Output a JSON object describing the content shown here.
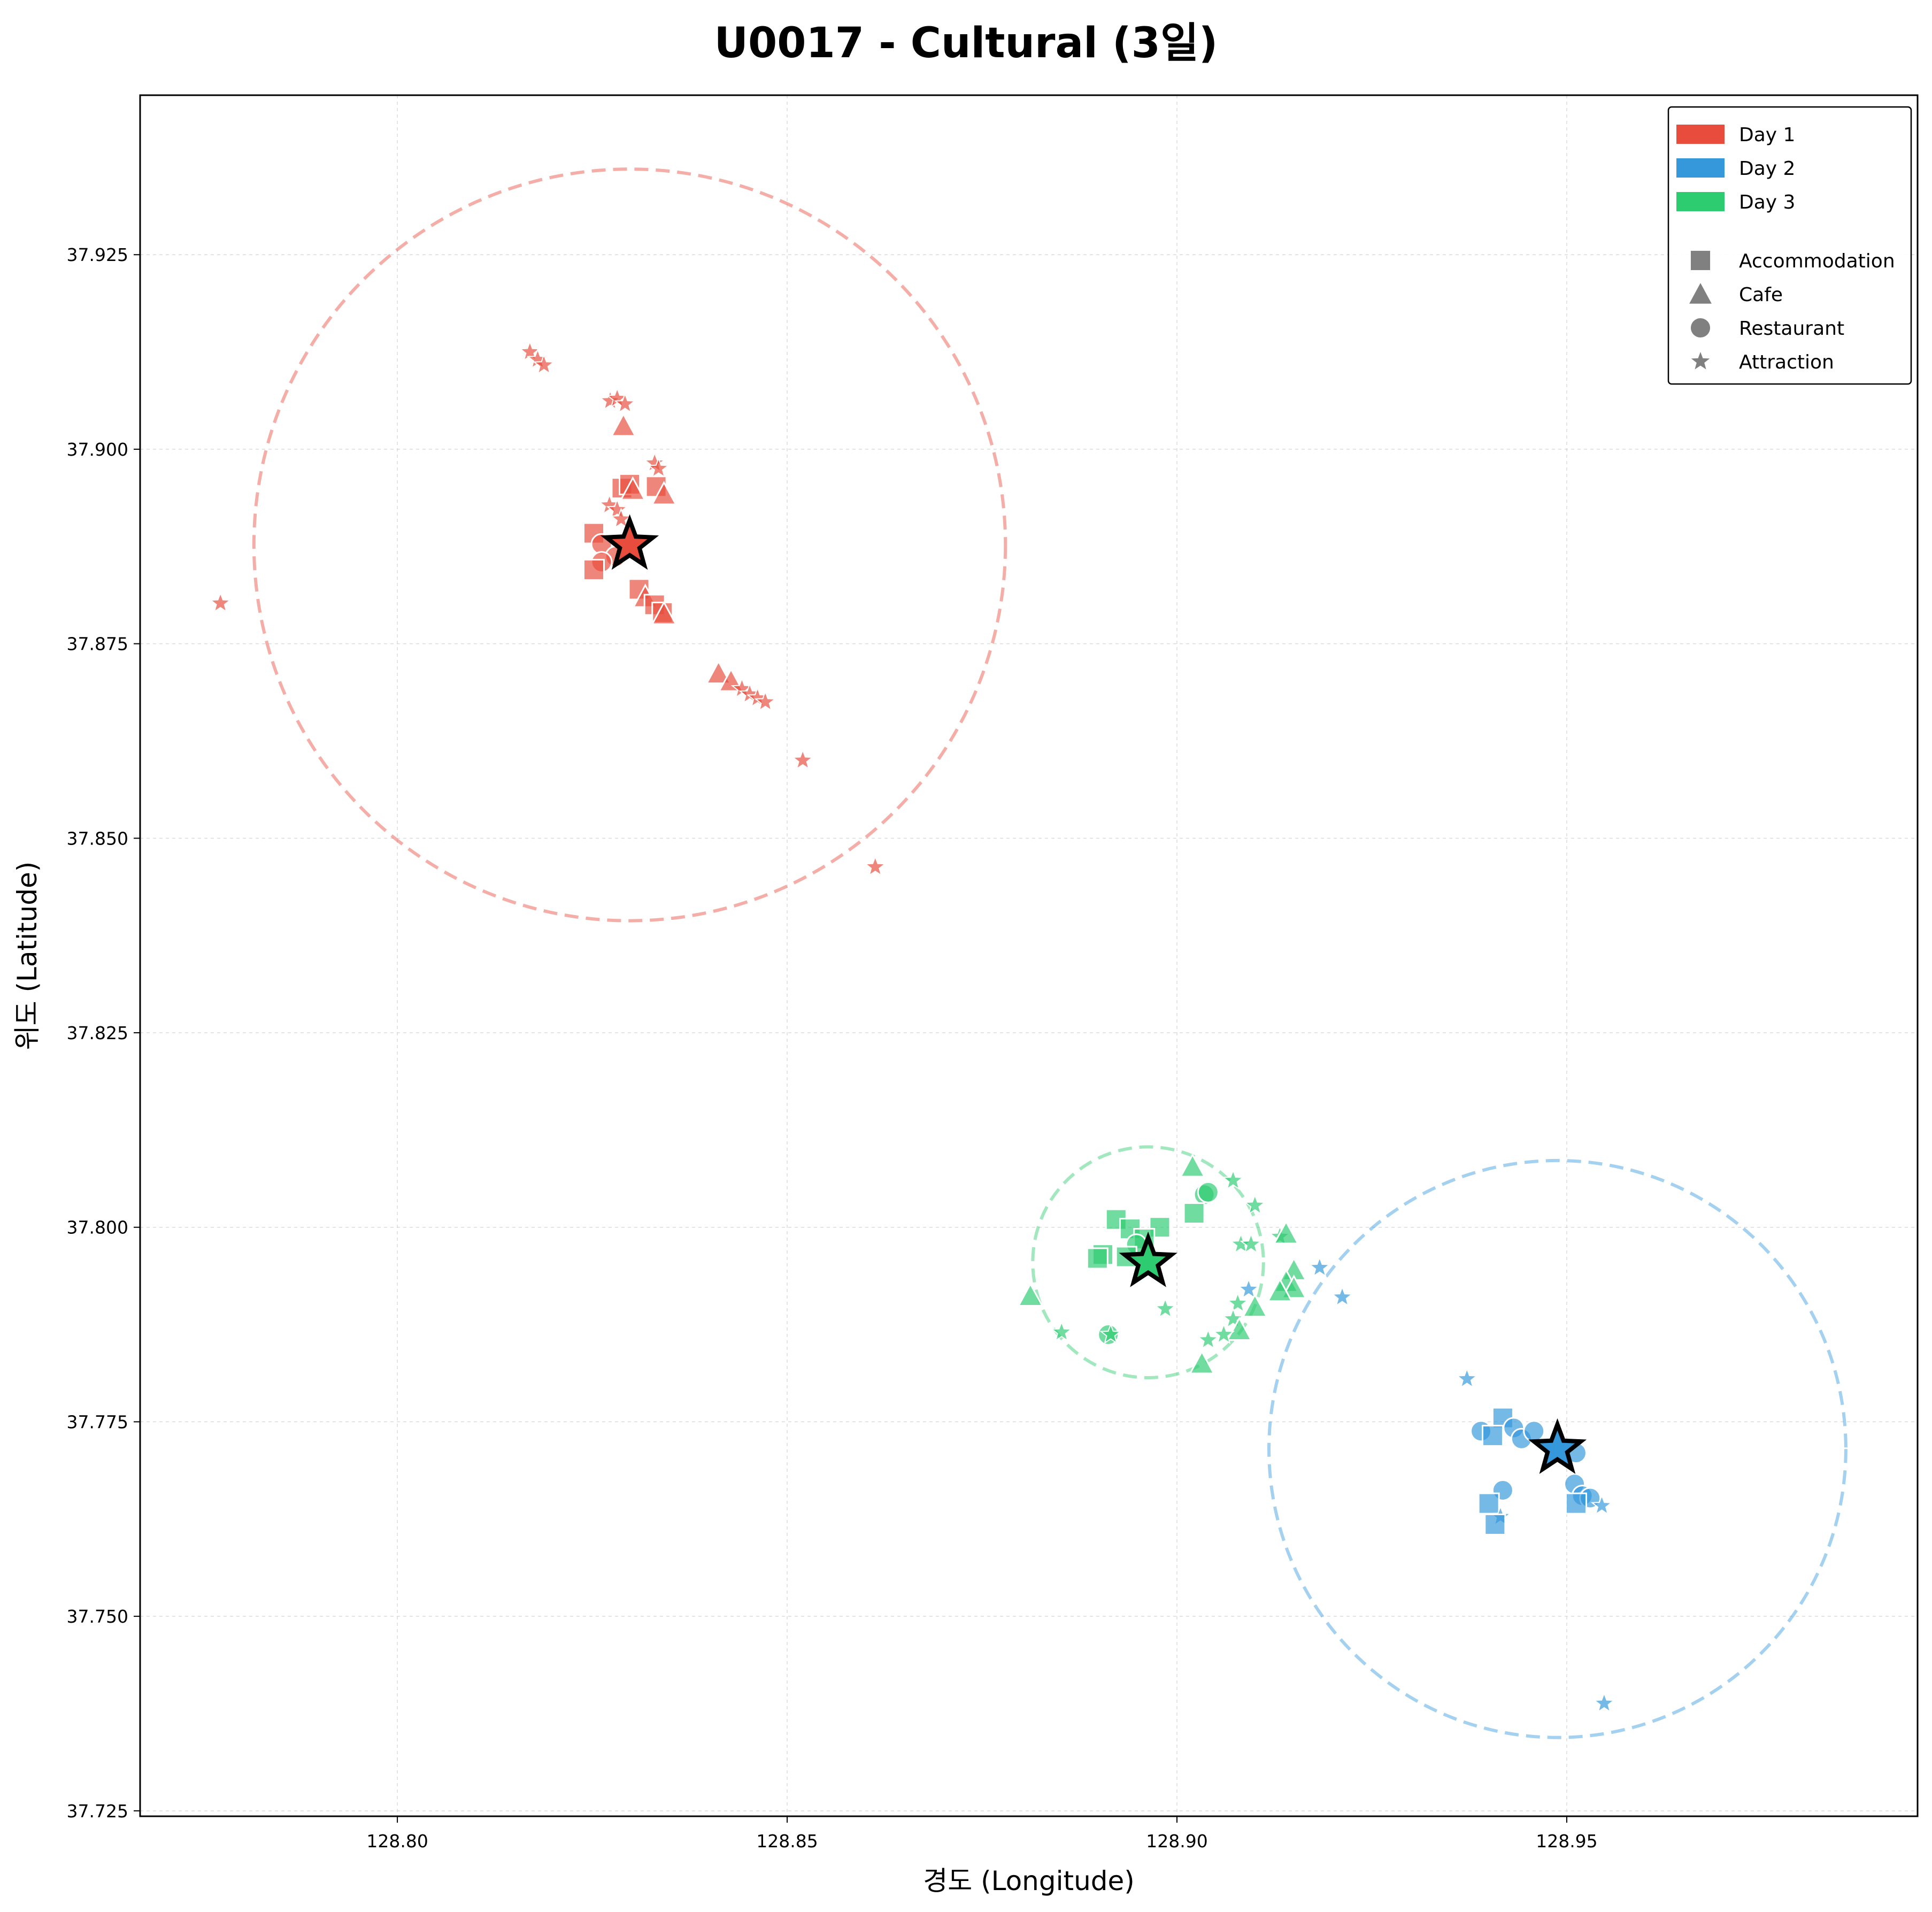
{
  "chart_data": {
    "type": "scatter",
    "title": "U0017 - Cultural (3일)",
    "xlabel": "경도 (Longitude)",
    "ylabel": "위도 (Latitude)",
    "xlim": [
      128.767,
      128.995
    ],
    "ylim": [
      37.7243,
      37.9455
    ],
    "xticks": [
      128.8,
      128.85,
      128.9,
      128.95
    ],
    "xtick_labels": [
      "128.80",
      "128.85",
      "128.90",
      "128.95"
    ],
    "yticks": [
      37.725,
      37.75,
      37.775,
      37.8,
      37.825,
      37.85,
      37.875,
      37.9,
      37.925
    ],
    "ytick_labels": [
      "37.725",
      "37.750",
      "37.775",
      "37.800",
      "37.825",
      "37.850",
      "37.875",
      "37.900",
      "37.925"
    ],
    "grid": true,
    "legend": {
      "placement": "top-right",
      "days": [
        {
          "label": "Day 1",
          "color": "#e74c3c"
        },
        {
          "label": "Day 2",
          "color": "#3498db"
        },
        {
          "label": "Day 3",
          "color": "#2ecc71"
        }
      ],
      "types": [
        {
          "label": "Accommodation",
          "marker": "square"
        },
        {
          "label": "Cafe",
          "marker": "triangle"
        },
        {
          "label": "Restaurant",
          "marker": "circle"
        },
        {
          "label": "Attraction",
          "marker": "star"
        }
      ],
      "marker_color": "#808080"
    },
    "series": [
      {
        "name": "Day 1",
        "color": "#e74c3c",
        "center": [
          128.8298,
          37.8877
        ],
        "radius_x_deg": 0.0482,
        "points": [
          {
            "x": 128.7773,
            "y": 37.8802,
            "type": "attraction"
          },
          {
            "x": 128.817,
            "y": 37.9125,
            "type": "attraction"
          },
          {
            "x": 128.818,
            "y": 37.9115,
            "type": "attraction"
          },
          {
            "x": 128.8188,
            "y": 37.9108,
            "type": "attraction"
          },
          {
            "x": 128.8273,
            "y": 37.9062,
            "type": "attraction"
          },
          {
            "x": 128.8282,
            "y": 37.9065,
            "type": "attraction"
          },
          {
            "x": 128.8292,
            "y": 37.9058,
            "type": "attraction"
          },
          {
            "x": 128.829,
            "y": 37.903,
            "type": "cafe"
          },
          {
            "x": 128.833,
            "y": 37.8982,
            "type": "attraction"
          },
          {
            "x": 128.8335,
            "y": 37.8975,
            "type": "attraction"
          },
          {
            "x": 128.8332,
            "y": 37.8952,
            "type": "accommodation"
          },
          {
            "x": 128.8342,
            "y": 37.8942,
            "type": "cafe"
          },
          {
            "x": 128.8288,
            "y": 37.895,
            "type": "accommodation"
          },
          {
            "x": 128.8298,
            "y": 37.8955,
            "type": "accommodation"
          },
          {
            "x": 128.8302,
            "y": 37.8948,
            "type": "cafe"
          },
          {
            "x": 128.8272,
            "y": 37.8928,
            "type": "attraction"
          },
          {
            "x": 128.8282,
            "y": 37.8922,
            "type": "attraction"
          },
          {
            "x": 128.8287,
            "y": 37.891,
            "type": "attraction"
          },
          {
            "x": 128.8252,
            "y": 37.8892,
            "type": "accommodation"
          },
          {
            "x": 128.8262,
            "y": 37.8878,
            "type": "restaurant"
          },
          {
            "x": 128.828,
            "y": 37.8862,
            "type": "restaurant"
          },
          {
            "x": 128.8262,
            "y": 37.8855,
            "type": "restaurant"
          },
          {
            "x": 128.8252,
            "y": 37.8845,
            "type": "accommodation"
          },
          {
            "x": 128.831,
            "y": 37.882,
            "type": "accommodation"
          },
          {
            "x": 128.8318,
            "y": 37.881,
            "type": "cafe"
          },
          {
            "x": 128.833,
            "y": 37.88,
            "type": "accommodation"
          },
          {
            "x": 128.834,
            "y": 37.879,
            "type": "accommodation"
          },
          {
            "x": 128.8342,
            "y": 37.8788,
            "type": "cafe"
          },
          {
            "x": 128.8412,
            "y": 37.8712,
            "type": "cafe"
          },
          {
            "x": 128.8428,
            "y": 37.8702,
            "type": "cafe"
          },
          {
            "x": 128.8442,
            "y": 37.8692,
            "type": "attraction"
          },
          {
            "x": 128.8452,
            "y": 37.8685,
            "type": "attraction"
          },
          {
            "x": 128.8462,
            "y": 37.868,
            "type": "attraction"
          },
          {
            "x": 128.8472,
            "y": 37.8675,
            "type": "attraction"
          },
          {
            "x": 128.852,
            "y": 37.86,
            "type": "attraction"
          },
          {
            "x": 128.8613,
            "y": 37.8463,
            "type": "attraction"
          }
        ]
      },
      {
        "name": "Day 2",
        "color": "#3498db",
        "center": [
          128.9488,
          37.7715
        ],
        "radius_x_deg": 0.037,
        "points": [
          {
            "x": 128.9183,
            "y": 37.7948,
            "type": "attraction"
          },
          {
            "x": 128.9092,
            "y": 37.792,
            "type": "attraction"
          },
          {
            "x": 128.9212,
            "y": 37.791,
            "type": "attraction"
          },
          {
            "x": 128.9372,
            "y": 37.7805,
            "type": "attraction"
          },
          {
            "x": 128.939,
            "y": 37.7738,
            "type": "restaurant"
          },
          {
            "x": 128.9418,
            "y": 37.7755,
            "type": "accommodation"
          },
          {
            "x": 128.9405,
            "y": 37.7732,
            "type": "accommodation"
          },
          {
            "x": 128.9432,
            "y": 37.7742,
            "type": "restaurant"
          },
          {
            "x": 128.9442,
            "y": 37.7728,
            "type": "restaurant"
          },
          {
            "x": 128.9458,
            "y": 37.7738,
            "type": "restaurant"
          },
          {
            "x": 128.9512,
            "y": 37.771,
            "type": "restaurant"
          },
          {
            "x": 128.9418,
            "y": 37.7662,
            "type": "restaurant"
          },
          {
            "x": 128.94,
            "y": 37.7645,
            "type": "accommodation"
          },
          {
            "x": 128.9415,
            "y": 37.7628,
            "type": "attraction"
          },
          {
            "x": 128.9408,
            "y": 37.7618,
            "type": "accommodation"
          },
          {
            "x": 128.951,
            "y": 37.767,
            "type": "restaurant"
          },
          {
            "x": 128.952,
            "y": 37.7655,
            "type": "restaurant"
          },
          {
            "x": 128.953,
            "y": 37.7652,
            "type": "restaurant"
          },
          {
            "x": 128.9512,
            "y": 37.7645,
            "type": "accommodation"
          },
          {
            "x": 128.9545,
            "y": 37.7642,
            "type": "attraction"
          },
          {
            "x": 128.9548,
            "y": 37.7388,
            "type": "attraction"
          }
        ]
      },
      {
        "name": "Day 3",
        "color": "#2ecc71",
        "center": [
          128.8963,
          37.7955
        ],
        "radius_x_deg": 0.0148,
        "points": [
          {
            "x": 128.902,
            "y": 37.8078,
            "type": "cafe"
          },
          {
            "x": 128.9072,
            "y": 37.806,
            "type": "attraction"
          },
          {
            "x": 128.9035,
            "y": 37.8042,
            "type": "restaurant"
          },
          {
            "x": 128.904,
            "y": 37.8045,
            "type": "restaurant"
          },
          {
            "x": 128.91,
            "y": 37.8028,
            "type": "attraction"
          },
          {
            "x": 128.9022,
            "y": 37.8018,
            "type": "accommodation"
          },
          {
            "x": 128.8978,
            "y": 37.8,
            "type": "accommodation"
          },
          {
            "x": 128.8922,
            "y": 37.801,
            "type": "accommodation"
          },
          {
            "x": 128.894,
            "y": 37.7998,
            "type": "accommodation"
          },
          {
            "x": 128.8958,
            "y": 37.7985,
            "type": "accommodation"
          },
          {
            "x": 128.8948,
            "y": 37.7978,
            "type": "restaurant"
          },
          {
            "x": 128.8905,
            "y": 37.7965,
            "type": "accommodation"
          },
          {
            "x": 128.8898,
            "y": 37.796,
            "type": "accommodation"
          },
          {
            "x": 128.8935,
            "y": 37.7962,
            "type": "accommodation"
          },
          {
            "x": 128.9132,
            "y": 37.7988,
            "type": "attraction"
          },
          {
            "x": 128.914,
            "y": 37.7992,
            "type": "cafe"
          },
          {
            "x": 128.9082,
            "y": 37.7978,
            "type": "attraction"
          },
          {
            "x": 128.9095,
            "y": 37.7978,
            "type": "attraction"
          },
          {
            "x": 128.915,
            "y": 37.7945,
            "type": "cafe"
          },
          {
            "x": 128.914,
            "y": 37.793,
            "type": "cafe"
          },
          {
            "x": 128.915,
            "y": 37.7922,
            "type": "cafe"
          },
          {
            "x": 128.9132,
            "y": 37.7918,
            "type": "cafe"
          },
          {
            "x": 128.8812,
            "y": 37.7912,
            "type": "cafe"
          },
          {
            "x": 128.9078,
            "y": 37.7902,
            "type": "attraction"
          },
          {
            "x": 128.91,
            "y": 37.7898,
            "type": "cafe"
          },
          {
            "x": 128.8985,
            "y": 37.7895,
            "type": "attraction"
          },
          {
            "x": 128.9072,
            "y": 37.7882,
            "type": "attraction"
          },
          {
            "x": 128.908,
            "y": 37.7868,
            "type": "cafe"
          },
          {
            "x": 128.906,
            "y": 37.7862,
            "type": "attraction"
          },
          {
            "x": 128.8852,
            "y": 37.7865,
            "type": "attraction"
          },
          {
            "x": 128.8912,
            "y": 37.7862,
            "type": "restaurant"
          },
          {
            "x": 128.8915,
            "y": 37.7862,
            "type": "attraction"
          },
          {
            "x": 128.904,
            "y": 37.7855,
            "type": "attraction"
          },
          {
            "x": 128.9032,
            "y": 37.7825,
            "type": "cafe"
          }
        ]
      }
    ]
  }
}
